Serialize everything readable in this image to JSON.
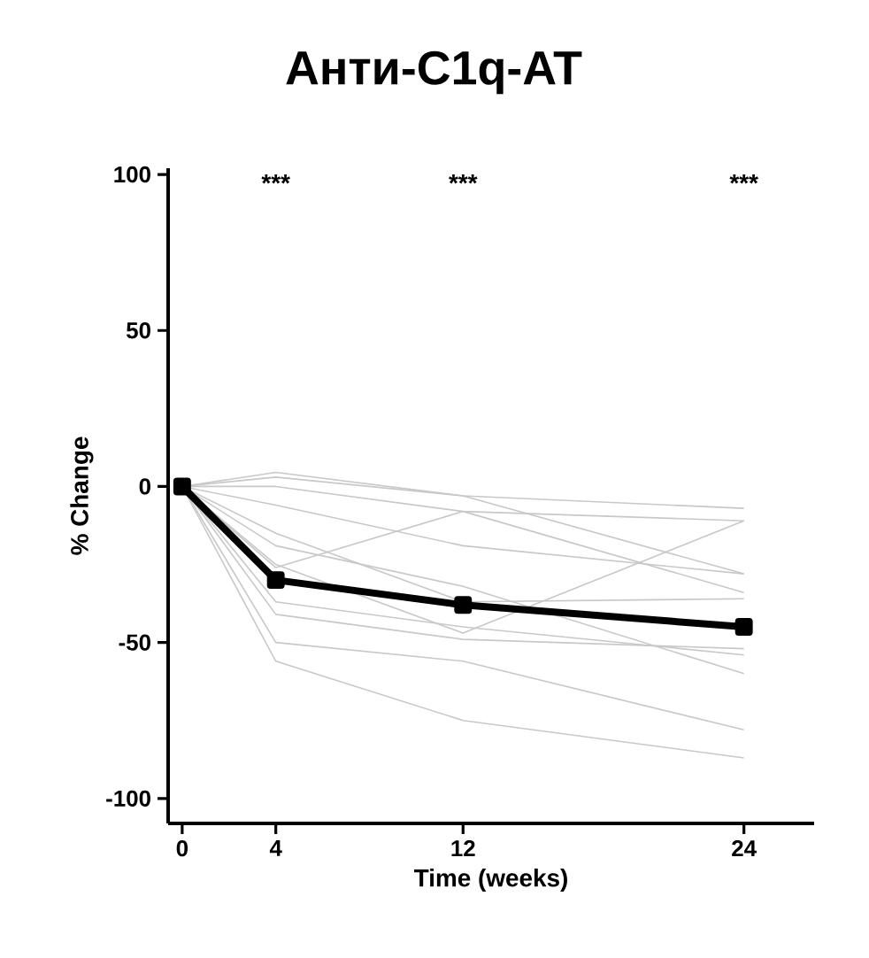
{
  "chart_data": {
    "type": "line",
    "title": "Анти-C1q-AT",
    "xlabel": "Time (weeks)",
    "ylabel": "% Change",
    "x": [
      0,
      4,
      12,
      24
    ],
    "xlim": [
      -0.6,
      27
    ],
    "xticks": [
      0,
      4,
      12,
      24
    ],
    "ylim": [
      -108,
      102
    ],
    "yticks": [
      100,
      50,
      0,
      -50,
      -100
    ],
    "grid": false,
    "line_style": "solid",
    "series": [
      {
        "color": "#c8c8c8",
        "marker": "none",
        "values": [
          0,
          4.5,
          -3,
          -7
        ]
      },
      {
        "color": "#c8c8c8",
        "marker": "none",
        "values": [
          0,
          3,
          -3,
          -28
        ]
      },
      {
        "color": "#c8c8c8",
        "marker": "none",
        "values": [
          0,
          0,
          -8,
          -11
        ]
      },
      {
        "color": "#c8c8c8",
        "marker": "none",
        "values": [
          0,
          -6,
          -19,
          -28
        ]
      },
      {
        "color": "#c8c8c8",
        "marker": "none",
        "values": [
          0,
          -26,
          -8,
          -34
        ]
      },
      {
        "color": "#c8c8c8",
        "marker": "none",
        "values": [
          0,
          -19,
          -32,
          -60
        ]
      },
      {
        "color": "#c8c8c8",
        "marker": "none",
        "values": [
          0,
          -25,
          -47,
          -11
        ]
      },
      {
        "color": "#c8c8c8",
        "marker": "none",
        "values": [
          0,
          -41,
          -49,
          -52
        ]
      },
      {
        "color": "#c8c8c8",
        "marker": "none",
        "values": [
          0,
          -37,
          -45,
          -54
        ]
      },
      {
        "color": "#c8c8c8",
        "marker": "none",
        "values": [
          0,
          -50,
          -56,
          -78
        ]
      },
      {
        "color": "#c8c8c8",
        "marker": "none",
        "values": [
          0,
          -56,
          -75,
          -87
        ]
      },
      {
        "color": "#c8c8c8",
        "marker": "none",
        "values": [
          0,
          -15,
          -37,
          -36
        ]
      },
      {
        "color": "#000000",
        "marker": "square",
        "values": [
          0,
          -30,
          -38,
          -45
        ]
      }
    ],
    "annotations": [
      "***",
      "***",
      "***"
    ]
  }
}
